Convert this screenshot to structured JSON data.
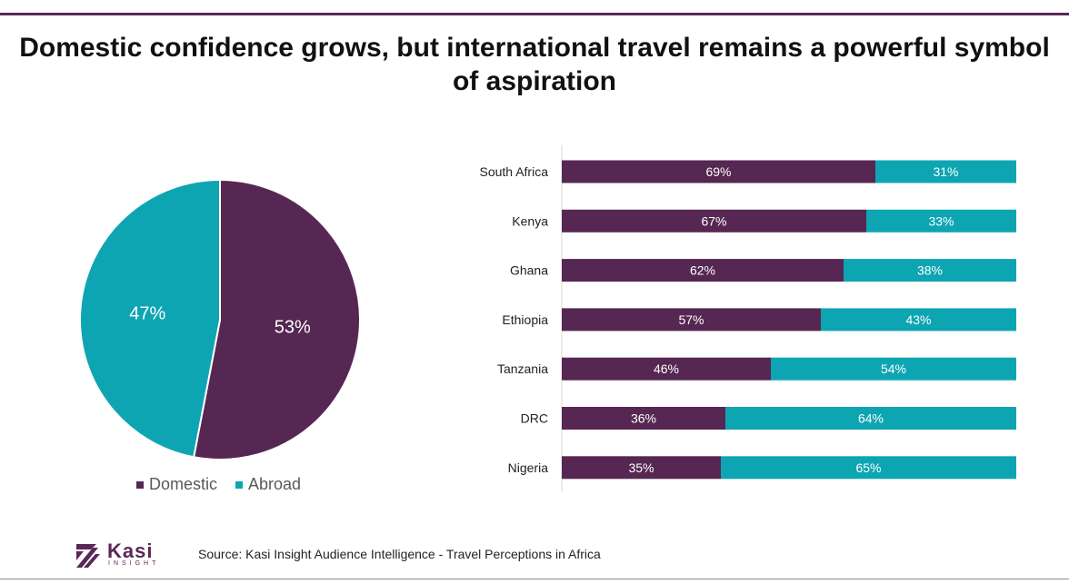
{
  "page": {
    "title": "Domestic confidence grows, but international travel remains a powerful symbol of aspiration",
    "source": "Source: Kasi Insight Audience Intelligence - Travel Perceptions in Africa",
    "logo": {
      "name": "Kasi",
      "tagline": "INSIGHT"
    }
  },
  "colors": {
    "domestic": "#562752",
    "abroad": "#0ea5b3"
  },
  "chart_data": [
    {
      "type": "pie",
      "labels": [
        "Domestic",
        "Abroad"
      ],
      "values": [
        53,
        47
      ],
      "data_labels": [
        "53%",
        "47%"
      ],
      "legend": {
        "position": "bottom",
        "entries": [
          "Domestic",
          "Abroad"
        ]
      }
    },
    {
      "type": "bar",
      "orientation": "horizontal",
      "stacked": true,
      "categories": [
        "South Africa",
        "Kenya",
        "Ghana",
        "Ethiopia",
        "Tanzania",
        "DRC",
        "Nigeria"
      ],
      "series": [
        {
          "name": "Domestic",
          "values": [
            69,
            67,
            62,
            57,
            46,
            36,
            35
          ],
          "labels": [
            "69%",
            "67%",
            "62%",
            "57%",
            "46%",
            "36%",
            "35%"
          ]
        },
        {
          "name": "Abroad",
          "values": [
            31,
            33,
            38,
            43,
            54,
            64,
            65
          ],
          "labels": [
            "31%",
            "33%",
            "38%",
            "43%",
            "54%",
            "64%",
            "65%"
          ]
        }
      ],
      "xlim": [
        0,
        100
      ],
      "grid": false
    }
  ]
}
